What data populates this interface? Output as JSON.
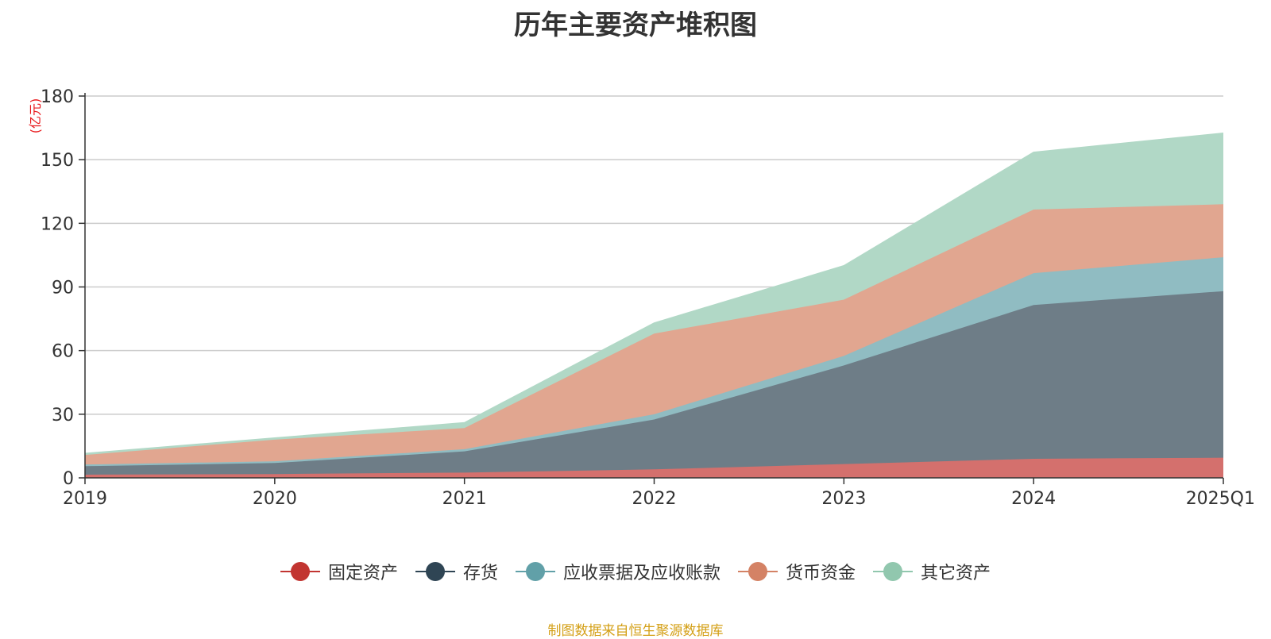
{
  "chart_data": {
    "type": "area",
    "stacked": true,
    "title": "历年主要资产堆积图",
    "unit": "(亿元)",
    "categories": [
      "2019",
      "2020",
      "2021",
      "2022",
      "2023",
      "2024",
      "2025Q1"
    ],
    "ylim": [
      0,
      180
    ],
    "yticks": [
      "0",
      "30",
      "60",
      "90",
      "120",
      "150",
      "180"
    ],
    "grid": true,
    "legend_position": "bottom",
    "series": [
      {
        "name": "固定资产",
        "color": "#c23531",
        "area_color": "#d4706d",
        "values": [
          1.5,
          1.8,
          2.5,
          4,
          6.5,
          9,
          9.5
        ]
      },
      {
        "name": "存货",
        "color": "#2f4554",
        "area_color": "#6e7d87",
        "values": [
          4,
          5.2,
          10,
          23.5,
          46.5,
          72.5,
          78.5
        ]
      },
      {
        "name": "应收票据及应收账款",
        "color": "#61a0a8",
        "area_color": "#90bcc2",
        "values": [
          0.8,
          0.8,
          1,
          2.5,
          4.5,
          15,
          16
        ]
      },
      {
        "name": "货币资金",
        "color": "#d48265",
        "area_color": "#e1a690",
        "values": [
          4.5,
          10.2,
          10,
          38,
          26.5,
          30,
          25
        ]
      },
      {
        "name": "其它资产",
        "color": "#91c7ae",
        "area_color": "#b1d8c6",
        "values": [
          0.7,
          0.8,
          2.5,
          5,
          16,
          27,
          33.5
        ]
      }
    ],
    "source": "制图数据来自恒生聚源数据库"
  }
}
